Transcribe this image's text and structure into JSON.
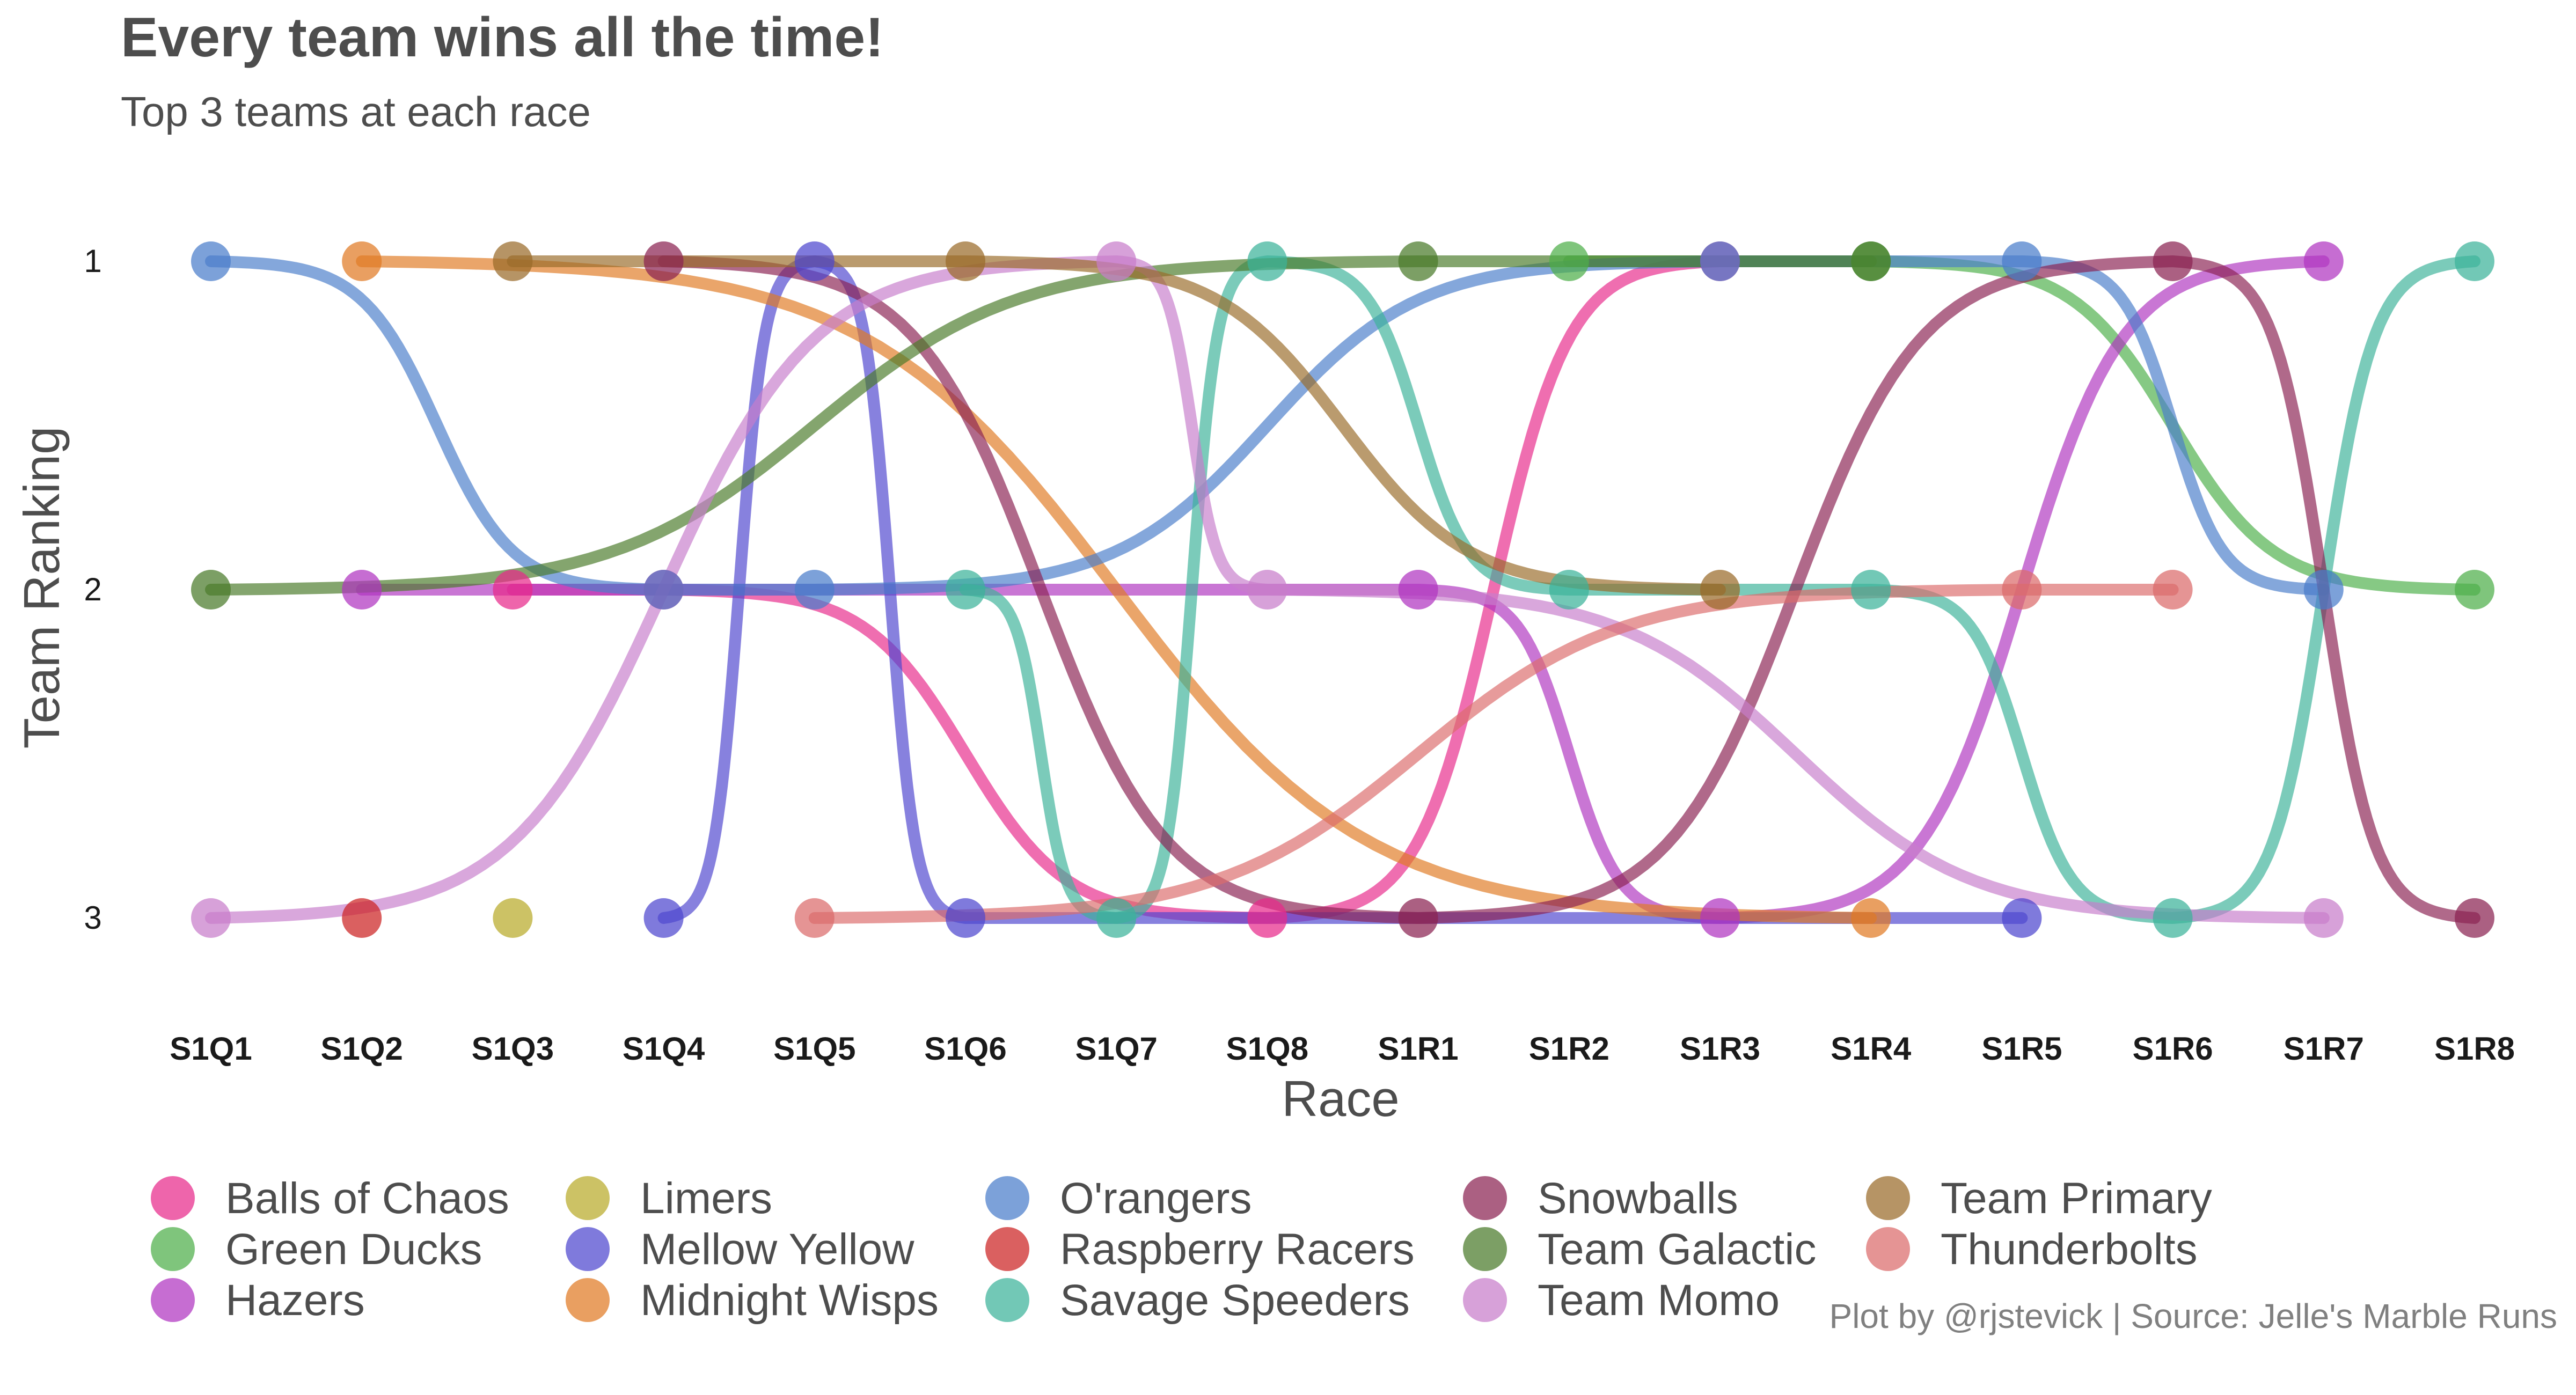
{
  "chart_data": {
    "type": "line",
    "title": "Every team wins all the time!",
    "subtitle": "Top 3 teams at each race",
    "xlabel": "Race",
    "ylabel": "Team Ranking",
    "categories": [
      "S1Q1",
      "S1Q2",
      "S1Q3",
      "S1Q4",
      "S1Q5",
      "S1Q6",
      "S1Q7",
      "S1Q8",
      "S1R1",
      "S1R2",
      "S1R3",
      "S1R4",
      "S1R5",
      "S1R6",
      "S1R7",
      "S1R8"
    ],
    "y_ticks": [
      "1",
      "2",
      "3"
    ],
    "ylim": [
      1,
      3
    ],
    "y_reversed": true,
    "grid": false,
    "legend_position": "bottom",
    "caption": "Plot by @rjstevick | Source: Jelle's Marble Runs",
    "series": [
      {
        "name": "Balls of Chaos",
        "color": "#E7298A",
        "points": [
          [
            "S1Q3",
            2
          ],
          [
            "S1Q4",
            2
          ],
          [
            "S1Q8",
            3
          ],
          [
            "S1R3",
            1
          ]
        ]
      },
      {
        "name": "Green Ducks",
        "color": "#4DAF4A",
        "points": [
          [
            "S1R2",
            1
          ],
          [
            "S1R4",
            1
          ],
          [
            "S1R8",
            2
          ]
        ]
      },
      {
        "name": "Hazers",
        "color": "#B035C0",
        "points": [
          [
            "S1Q2",
            2
          ],
          [
            "S1R1",
            2
          ],
          [
            "S1R3",
            3
          ],
          [
            "S1R7",
            1
          ]
        ]
      },
      {
        "name": "Limers",
        "color": "#B8AA2A",
        "points": [
          [
            "S1Q3",
            3
          ]
        ]
      },
      {
        "name": "Mellow Yellow",
        "color": "#4E46CF",
        "points": [
          [
            "S1Q4",
            3
          ],
          [
            "S1Q5",
            1
          ],
          [
            "S1Q6",
            3
          ],
          [
            "S1R5",
            3
          ]
        ]
      },
      {
        "name": "Midnight Wisps",
        "color": "#E07A24",
        "points": [
          [
            "S1Q2",
            1
          ],
          [
            "S1R4",
            3
          ]
        ]
      },
      {
        "name": "O'rangers",
        "color": "#4A7DCA",
        "points": [
          [
            "S1Q1",
            1
          ],
          [
            "S1Q4",
            2
          ],
          [
            "S1Q5",
            2
          ],
          [
            "S1R3",
            1
          ],
          [
            "S1R5",
            1
          ],
          [
            "S1R7",
            2
          ]
        ]
      },
      {
        "name": "Raspberry Racers",
        "color": "#CC2222",
        "points": [
          [
            "S1Q2",
            3
          ]
        ]
      },
      {
        "name": "Savage Speeders",
        "color": "#3CB39A",
        "points": [
          [
            "S1Q6",
            2
          ],
          [
            "S1Q7",
            3
          ],
          [
            "S1Q8",
            1
          ],
          [
            "S1R2",
            2
          ],
          [
            "S1R4",
            2
          ],
          [
            "S1R6",
            3
          ],
          [
            "S1R8",
            1
          ]
        ]
      },
      {
        "name": "Snowballs",
        "color": "#8B2252",
        "points": [
          [
            "S1Q4",
            1
          ],
          [
            "S1R1",
            3
          ],
          [
            "S1R6",
            1
          ],
          [
            "S1R8",
            3
          ]
        ]
      },
      {
        "name": "Team Galactic",
        "color": "#4A7A2A",
        "points": [
          [
            "S1Q1",
            2
          ],
          [
            "S1R1",
            1
          ],
          [
            "S1R4",
            1
          ]
        ]
      },
      {
        "name": "Team Momo",
        "color": "#C77DCB",
        "points": [
          [
            "S1Q1",
            3
          ],
          [
            "S1Q7",
            1
          ],
          [
            "S1Q8",
            2
          ],
          [
            "S1R7",
            3
          ]
        ]
      },
      {
        "name": "Team Primary",
        "color": "#9A6B2A",
        "points": [
          [
            "S1Q3",
            1
          ],
          [
            "S1Q6",
            1
          ],
          [
            "S1R3",
            2
          ]
        ]
      },
      {
        "name": "Thunderbolts",
        "color": "#DB6B6B",
        "points": [
          [
            "S1Q5",
            3
          ],
          [
            "S1R5",
            2
          ],
          [
            "S1R6",
            2
          ]
        ]
      }
    ]
  }
}
